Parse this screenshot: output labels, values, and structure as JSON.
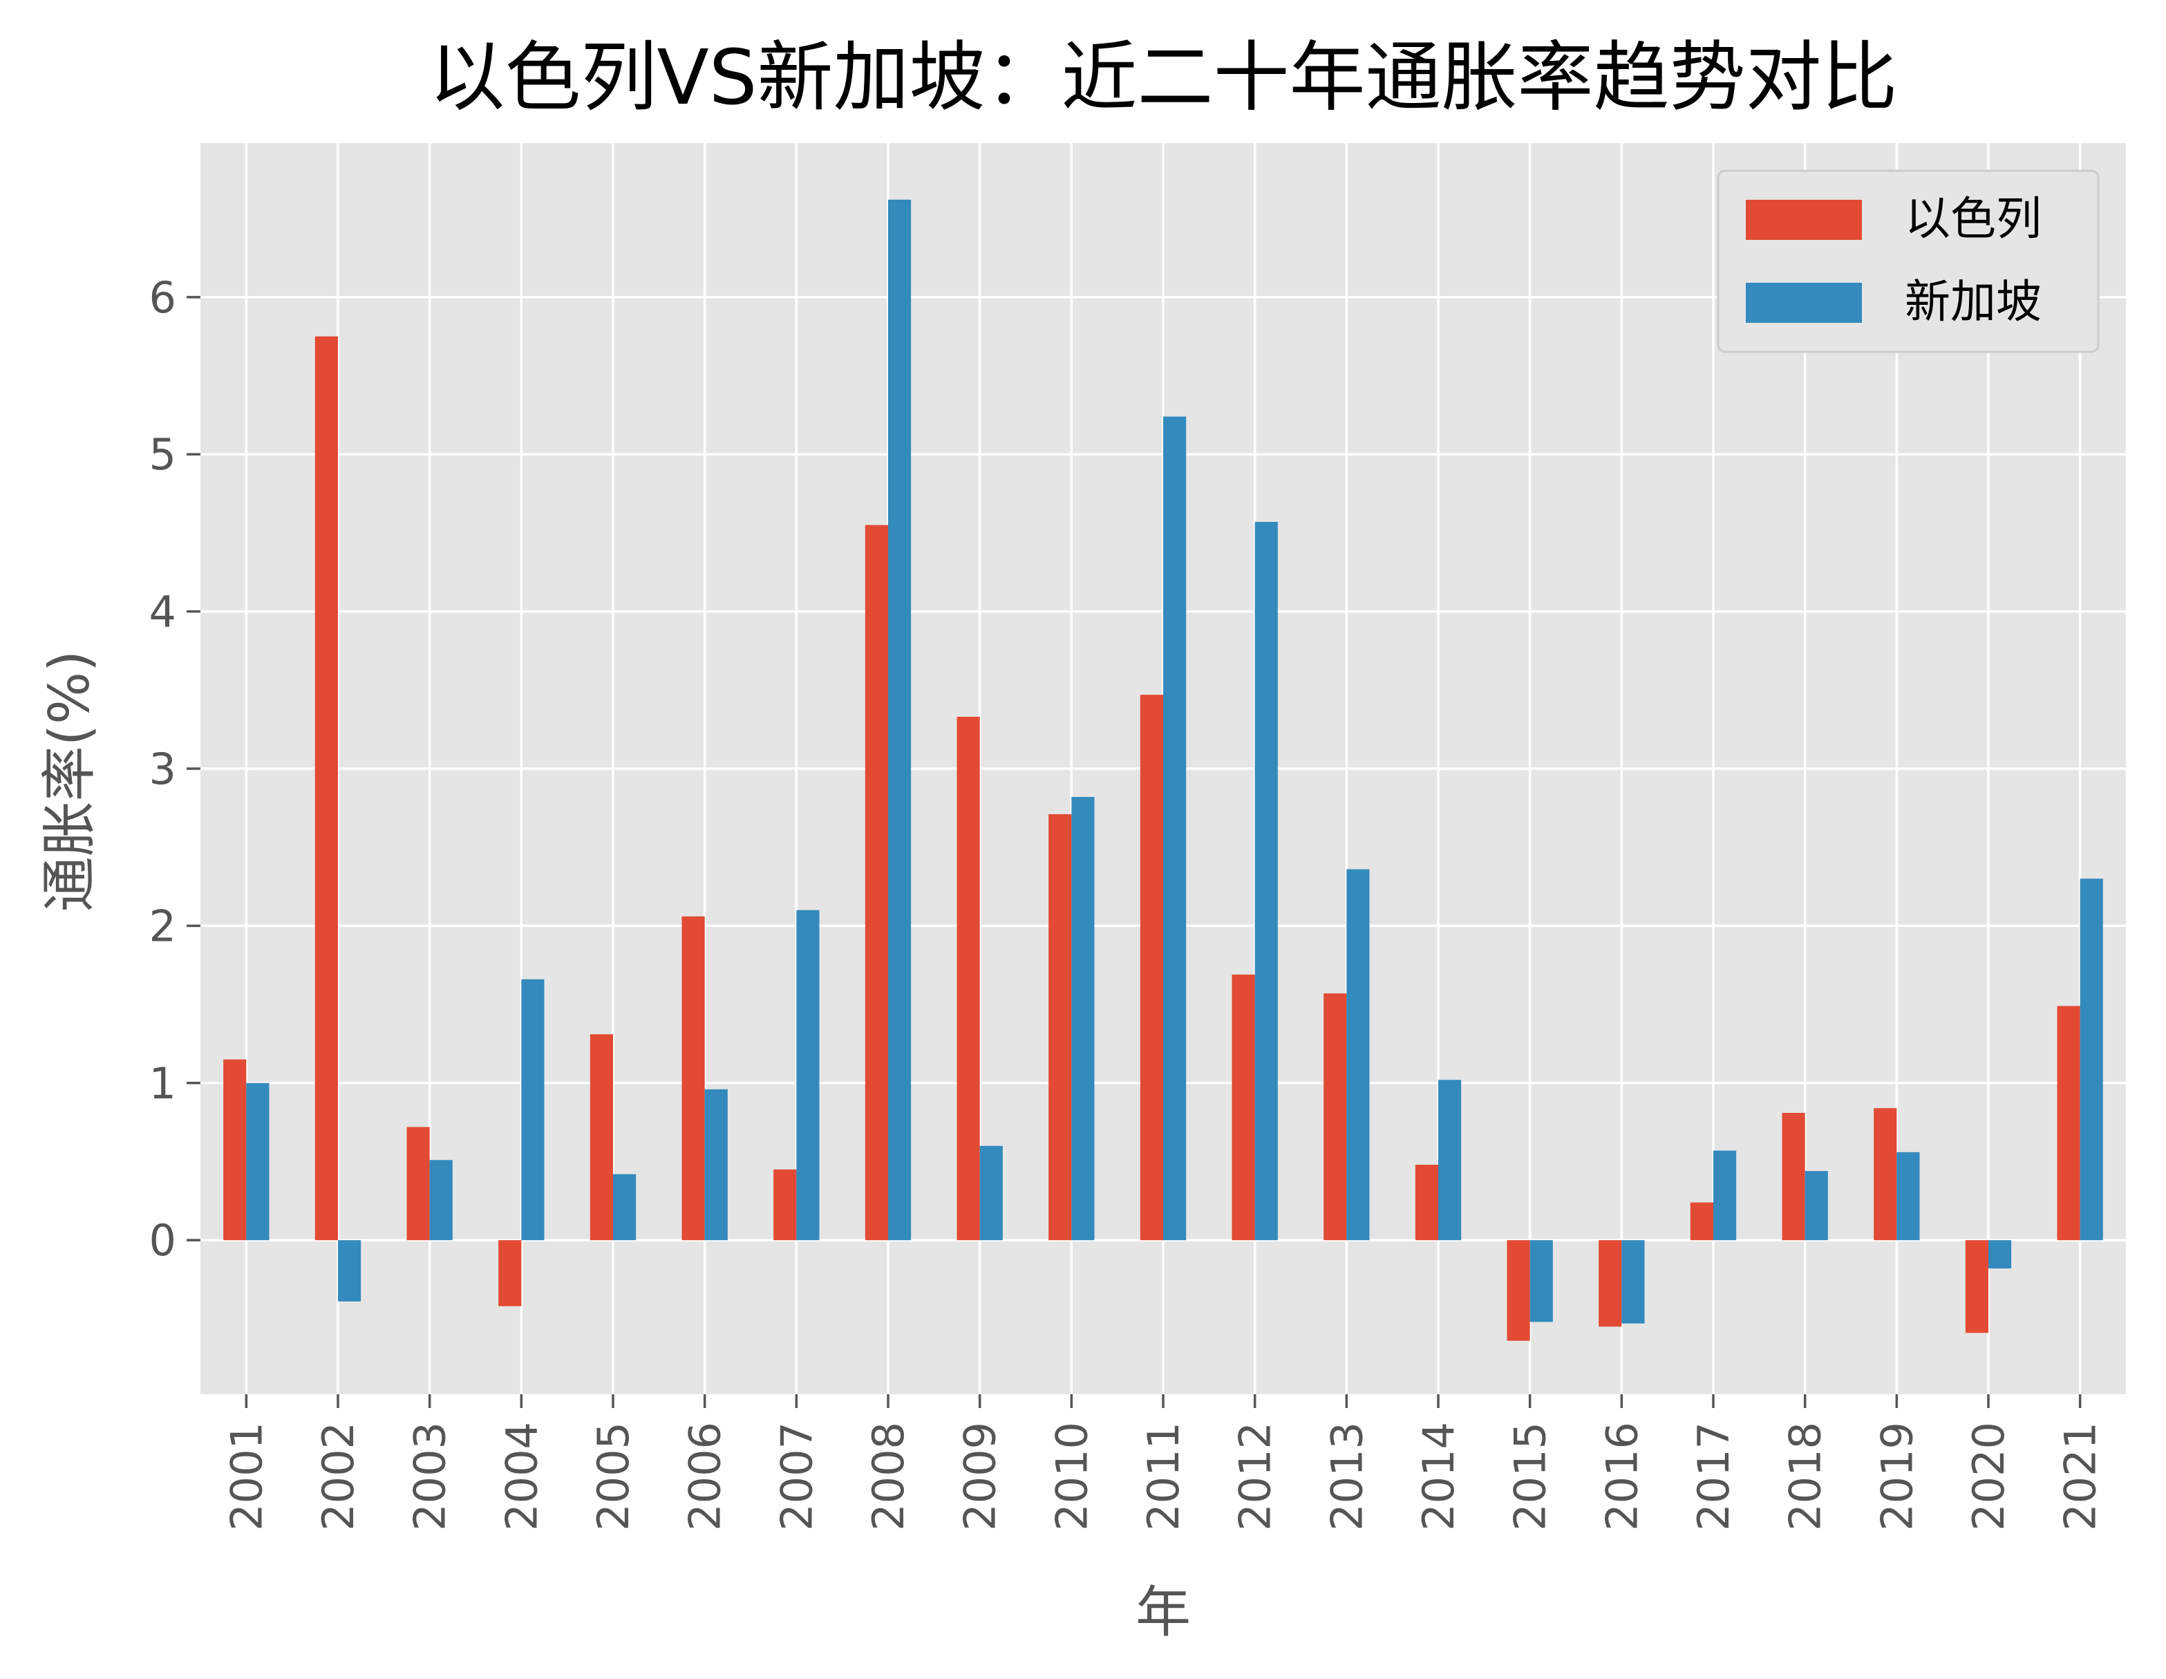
{
  "chart_data": {
    "type": "bar",
    "title": "以色列VS新加坡：近二十年通胀率趋势对比",
    "xlabel": "年",
    "ylabel": "通胀率(%)",
    "categories": [
      "2001",
      "2002",
      "2003",
      "2004",
      "2005",
      "2006",
      "2007",
      "2008",
      "2009",
      "2010",
      "2011",
      "2012",
      "2013",
      "2014",
      "2015",
      "2016",
      "2017",
      "2018",
      "2019",
      "2020",
      "2021"
    ],
    "series": [
      {
        "name": "以色列",
        "color": "#E24A33",
        "values": [
          1.15,
          5.75,
          0.72,
          -0.42,
          1.31,
          2.06,
          0.45,
          4.55,
          3.33,
          2.71,
          3.47,
          1.69,
          1.57,
          0.48,
          -0.64,
          -0.55,
          0.24,
          0.81,
          0.84,
          -0.59,
          1.49
        ]
      },
      {
        "name": "新加坡",
        "color": "#348ABD",
        "values": [
          1.0,
          -0.39,
          0.51,
          1.66,
          0.42,
          0.96,
          2.1,
          6.62,
          0.6,
          2.82,
          5.24,
          4.57,
          2.36,
          1.02,
          -0.52,
          -0.53,
          0.57,
          0.44,
          0.56,
          -0.18,
          2.3
        ]
      }
    ],
    "ylim": [
      -0.98,
      6.98
    ],
    "yticks": [
      0,
      1,
      2,
      3,
      4,
      5,
      6
    ],
    "grid": true,
    "legend_position": "top-right",
    "background": "#E5E5E5",
    "grid_color": "#FFFFFF"
  }
}
